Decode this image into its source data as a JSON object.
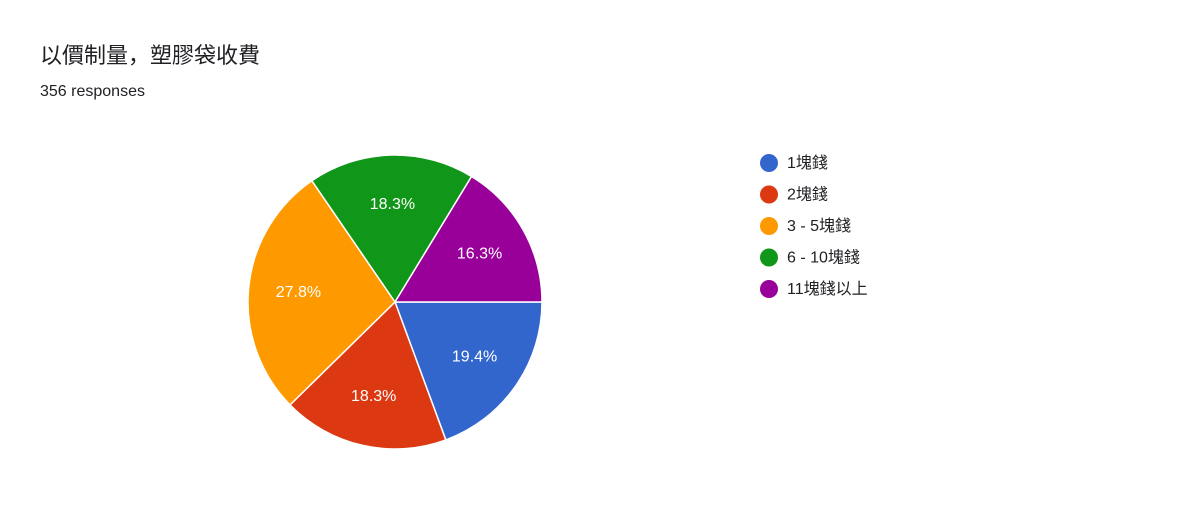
{
  "chart_data": {
    "type": "pie",
    "title": "以價制量，塑膠袋收費",
    "subtitle": "356 responses",
    "categories": [
      "1塊錢",
      "2塊錢",
      "3 - 5塊錢",
      "6 - 10塊錢",
      "11塊錢以上"
    ],
    "values": [
      19.4,
      18.3,
      27.8,
      18.3,
      16.3
    ],
    "value_labels": [
      "19.4%",
      "18.3%",
      "27.8%",
      "18.3%",
      "16.3%"
    ],
    "colors": [
      "#3366cc",
      "#dc3912",
      "#ff9900",
      "#109618",
      "#990099"
    ]
  }
}
